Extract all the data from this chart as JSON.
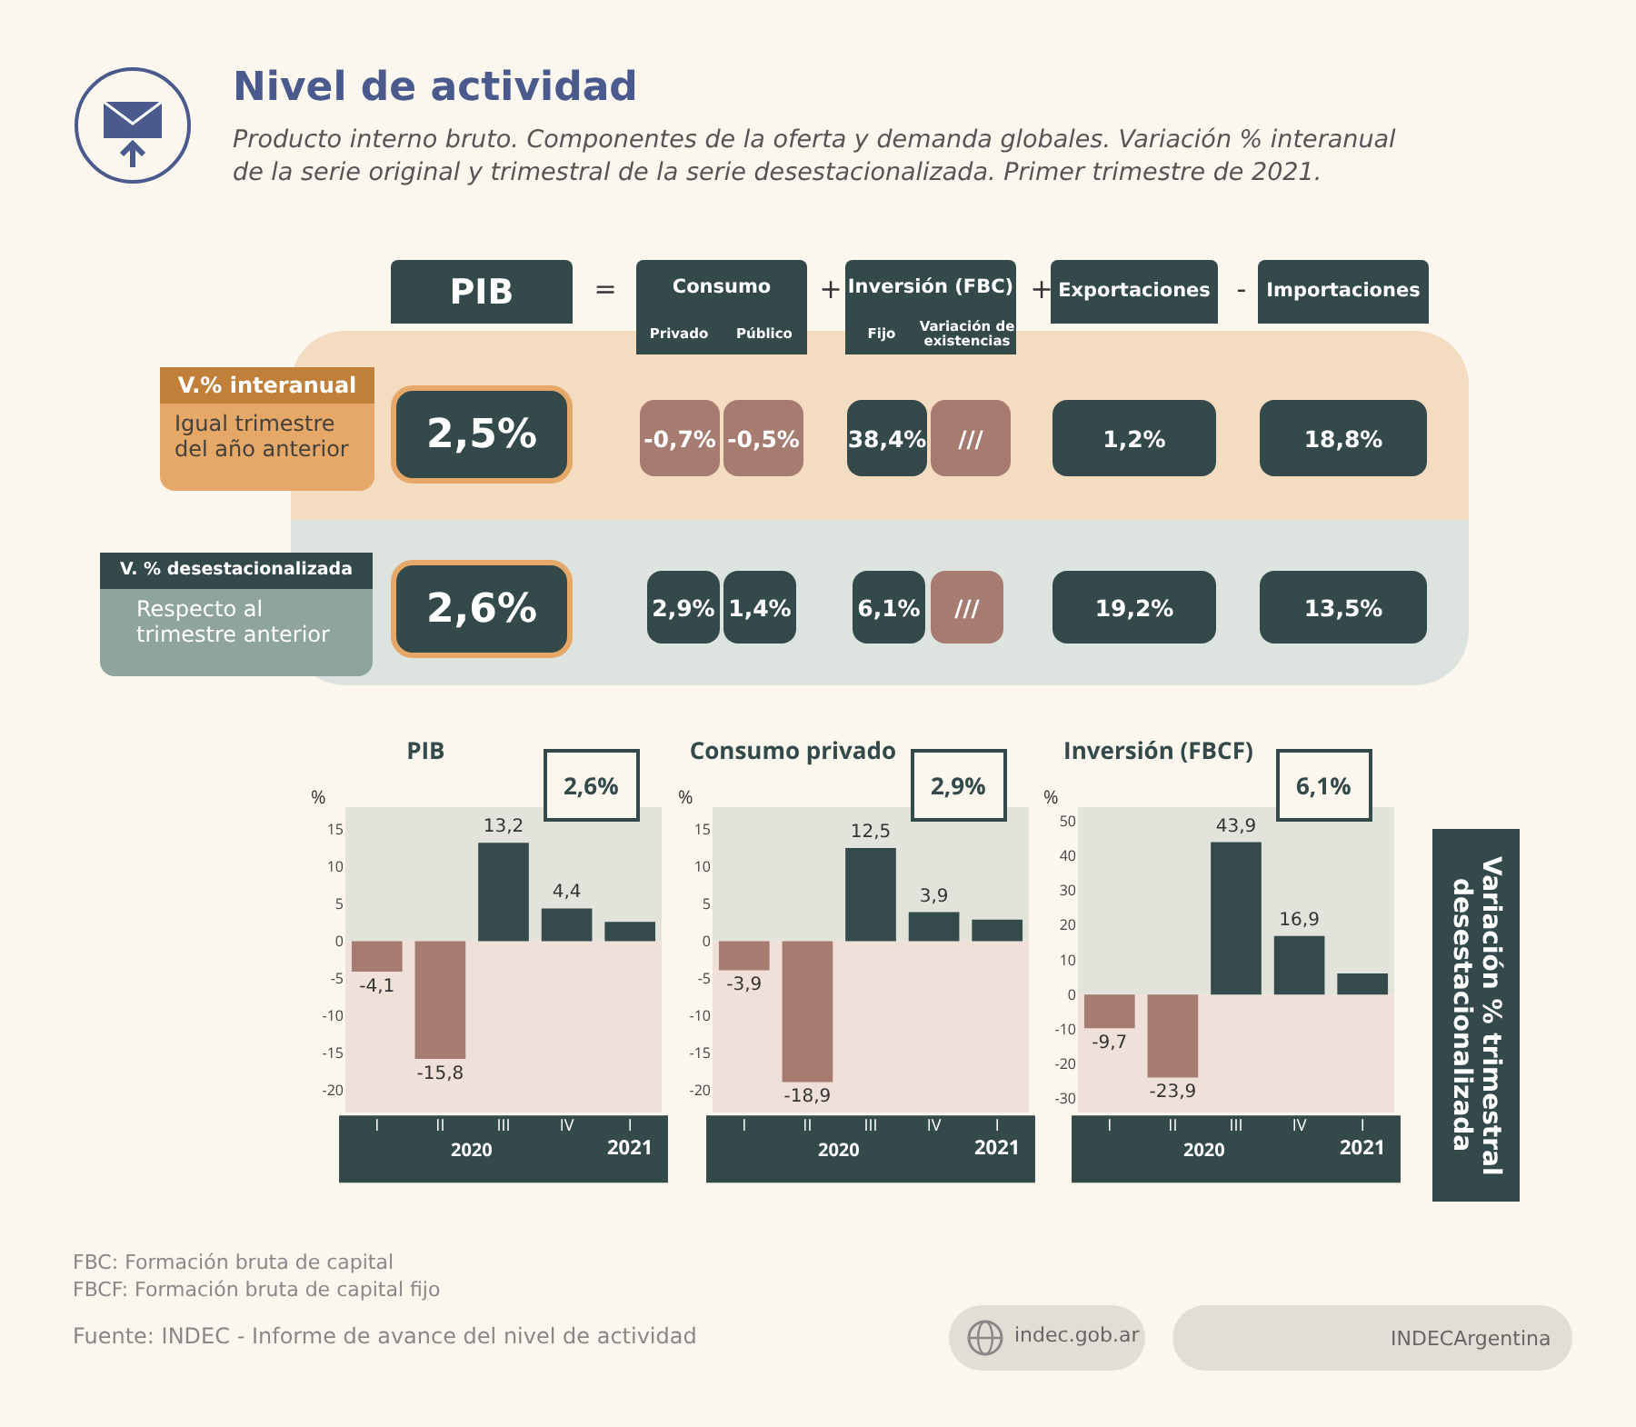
{
  "chart_data": [
    {
      "type": "other",
      "title": "Nivel de actividad",
      "subtitle": "Producto interno bruto. Componentes de la oferta y demanda globales. Variación % interanual de la serie original y trimestral de la serie desestacionalizada. Primer trimestre de 2021.",
      "annotations": [
        "PIB",
        "=",
        "Consumo",
        "+",
        "Inversión (FBC)",
        "+",
        "Exportaciones",
        "-",
        "Importaciones",
        "Privado",
        "Público",
        "Fijo",
        "Variación de existencias",
        "V.% interanual",
        "Igual trimestre del año anterior",
        "2,5%",
        "-0,7%",
        "-0,5%",
        "38,4%",
        "///",
        "1,2%",
        "18,8%",
        "V. % desestacionalizada",
        "Respecto al trimestre anterior",
        "2,6%",
        "2,9%",
        "1,4%",
        "6,1%",
        "///",
        "19,2%",
        "13,5%",
        "Variación % trimestral desestacionalizada",
        "FBC: Formación bruta de capital",
        "FBCF: Formación bruta de capital fijo",
        "Fuente: INDEC - Informe de avance del nivel de actividad",
        "indec.gob.ar",
        "INDECArgentina"
      ]
    },
    {
      "type": "bar",
      "title": "PIB",
      "ylabel": "%",
      "categories": [
        "I",
        "II",
        "III",
        "IV",
        "I"
      ],
      "values": [
        -4.1,
        -15.8,
        13.2,
        4.4,
        2.6
      ],
      "colors": [
        "#a67b70",
        "#a67b70",
        "#354b4b",
        "#354b4b",
        "#354b4b"
      ],
      "value_labels": [
        "-4,1",
        "-15,8",
        "13,2",
        "4,4",
        null
      ],
      "ylim": [
        -23,
        18
      ],
      "yticks": [
        -20,
        -15,
        -10,
        -5,
        0,
        5,
        10,
        15
      ],
      "bands": [
        {
          "axis": "y",
          "from": 0,
          "to": 18,
          "color": "#e2e4dc"
        },
        {
          "axis": "y",
          "from": -23,
          "to": 0,
          "color": "#efe0d9"
        }
      ],
      "annotations": [
        "2,6%",
        "2020",
        "2021"
      ],
      "grid": false
    },
    {
      "type": "bar",
      "title": "Consumo privado",
      "ylabel": "%",
      "categories": [
        "I",
        "II",
        "III",
        "IV",
        "I"
      ],
      "values": [
        -3.9,
        -18.9,
        12.5,
        3.9,
        2.9
      ],
      "colors": [
        "#a67b70",
        "#a67b70",
        "#354b4b",
        "#354b4b",
        "#354b4b"
      ],
      "value_labels": [
        "-3,9",
        "-18,9",
        "12,5",
        "3,9",
        null
      ],
      "ylim": [
        -23,
        18
      ],
      "yticks": [
        -20,
        -15,
        -10,
        -5,
        0,
        5,
        10,
        15
      ],
      "bands": [
        {
          "axis": "y",
          "from": 0,
          "to": 18,
          "color": "#e2e4dc"
        },
        {
          "axis": "y",
          "from": -23,
          "to": 0,
          "color": "#efe0d9"
        }
      ],
      "annotations": [
        "2,9%",
        "2020",
        "2021"
      ],
      "grid": false
    },
    {
      "type": "bar",
      "title": "Inversión (FBCF)",
      "ylabel": "%",
      "categories": [
        "I",
        "II",
        "III",
        "IV",
        "I"
      ],
      "values": [
        -9.7,
        -23.9,
        43.9,
        16.9,
        6.1
      ],
      "colors": [
        "#a67b70",
        "#a67b70",
        "#354b4b",
        "#354b4b",
        "#354b4b"
      ],
      "value_labels": [
        "-9,7",
        "-23,9",
        "43,9",
        "16,9",
        null
      ],
      "ylim": [
        -34,
        54
      ],
      "yticks": [
        -30,
        -20,
        -10,
        0,
        10,
        20,
        30,
        40,
        50
      ],
      "bands": [
        {
          "axis": "y",
          "from": 0,
          "to": 54,
          "color": "#e2e4dc"
        },
        {
          "axis": "y",
          "from": -34,
          "to": 0,
          "color": "#efe0d9"
        }
      ],
      "annotations": [
        "6,1%",
        "2020",
        "2021"
      ],
      "grid": false
    }
  ]
}
